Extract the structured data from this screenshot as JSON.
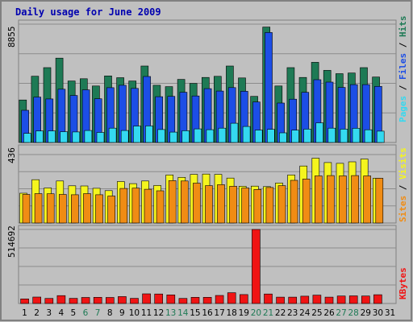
{
  "chart_data": {
    "type": "bar",
    "title": "Daily usage for June 2009",
    "categories": [
      "1",
      "2",
      "3",
      "4",
      "5",
      "6",
      "7",
      "8",
      "9",
      "10",
      "11",
      "12",
      "13",
      "14",
      "15",
      "16",
      "17",
      "18",
      "19",
      "20",
      "21",
      "22",
      "23",
      "24",
      "25",
      "26",
      "27",
      "28",
      "29",
      "30",
      "31"
    ],
    "weekend_days": [
      "6",
      "7",
      "13",
      "14",
      "20",
      "21",
      "27",
      "28"
    ],
    "panels": [
      {
        "name": "traffic",
        "ymax_label": "8855",
        "ymax": 8855,
        "series": [
          {
            "name": "Hits",
            "color": "#1e7a55",
            "values": [
              3180,
              4960,
              5600,
              6310,
              4600,
              4770,
              4230,
              4980,
              4850,
              4600,
              5720,
              4280,
              4180,
              4720,
              4420,
              4870,
              4950,
              5720,
              4830,
              3450,
              8640,
              4230,
              5600,
              4870,
              6000,
              5400,
              5150,
              5200,
              5600,
              4900,
              0
            ]
          },
          {
            "name": "Files",
            "color": "#1c4ee6",
            "values": [
              2410,
              3400,
              3260,
              3990,
              3520,
              3940,
              3270,
              4100,
              4280,
              4050,
              4940,
              3430,
              3450,
              3760,
              3480,
              4030,
              3850,
              4110,
              3830,
              3030,
              8230,
              2950,
              3240,
              3750,
              4700,
              4520,
              4120,
              4330,
              4330,
              4200,
              0
            ]
          },
          {
            "name": "Pages",
            "color": "#34d9f0",
            "values": [
              680,
              860,
              870,
              810,
              790,
              900,
              750,
              1070,
              900,
              1230,
              1240,
              970,
              780,
              880,
              1020,
              960,
              1070,
              1440,
              1200,
              930,
              980,
              720,
              920,
              1000,
              1470,
              1070,
              1000,
              1060,
              950,
              850,
              0
            ]
          }
        ]
      },
      {
        "name": "visitors",
        "ymax_label": "436",
        "ymax": 436,
        "series": [
          {
            "name": "Visits",
            "color": "#f5f51e",
            "values": [
              190,
              276,
              223,
              268,
              237,
              236,
              221,
              206,
              264,
              251,
              268,
              239,
              306,
              291,
              310,
              312,
              310,
              286,
              234,
              235,
              232,
              255,
              306,
              363,
              413,
              385,
              380,
              390,
              408,
              285,
              0
            ]
          },
          {
            "name": "Sites",
            "color": "#f08c14",
            "values": [
              182,
              187,
              186,
              182,
              180,
              187,
              180,
              172,
              220,
              222,
              215,
              205,
              270,
              268,
              254,
              238,
              244,
              234,
              223,
              214,
              226,
              238,
              272,
              280,
              300,
              302,
              300,
              302,
              300,
              285,
              0
            ]
          }
        ]
      },
      {
        "name": "volume",
        "ymax_label": "514692",
        "ymax": 514692,
        "series": [
          {
            "name": "KBytes",
            "color": "#f01414",
            "values": [
              32000,
              45000,
              35000,
              55000,
              36000,
              42000,
              43000,
              42000,
              48000,
              36000,
              67000,
              66000,
              60000,
              35000,
              43000,
              43000,
              56000,
              75000,
              62000,
              514692,
              66000,
              44000,
              44000,
              51000,
              58000,
              44000,
              52000,
              53000,
              52000,
              61000,
              0
            ]
          }
        ]
      }
    ],
    "right_labels": {
      "top": [
        {
          "text": "Pages",
          "color": "#34d9f0"
        },
        {
          "text": " / ",
          "color": "#000000"
        },
        {
          "text": "Files",
          "color": "#1c4ee6"
        },
        {
          "text": " / ",
          "color": "#000000"
        },
        {
          "text": "Hits",
          "color": "#1e7a55"
        }
      ],
      "middle": [
        {
          "text": "Sites",
          "color": "#f08c14"
        },
        {
          "text": " / ",
          "color": "#000000"
        },
        {
          "text": "Visits",
          "color": "#f5f51e"
        }
      ],
      "bottom": [
        {
          "text": "KBytes",
          "color": "#f01414"
        }
      ]
    },
    "colors": {
      "background": "#c0c0c0",
      "title": "#0000b0",
      "weekday_tick": "#000000",
      "weekend_tick": "#1e7a55"
    }
  }
}
